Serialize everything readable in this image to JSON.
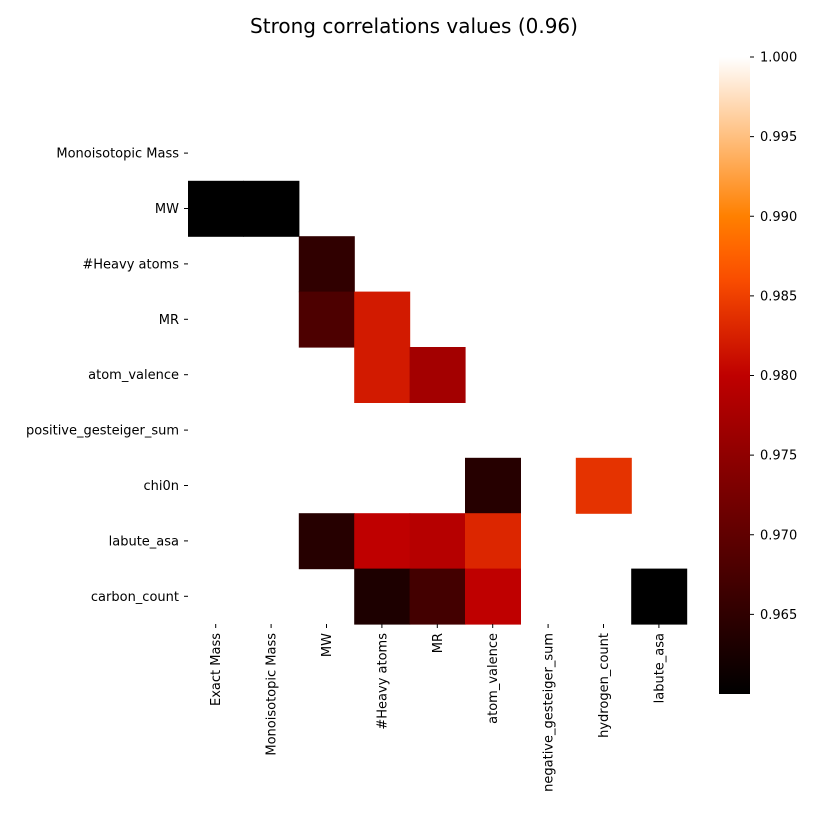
{
  "chart_data": {
    "type": "heatmap",
    "title": "Strong correlations values (0.96)",
    "xlabel": "",
    "ylabel": "",
    "x_categories": [
      "Exact Mass",
      "Monoisotopic Mass",
      "MW",
      "#Heavy atoms",
      "MR",
      "atom_valence",
      "negative_gesteiger_sum",
      "hydrogen_count",
      "labute_asa"
    ],
    "y_categories": [
      "",
      "Monoisotopic Mass",
      "MW",
      "#Heavy atoms",
      "MR",
      "atom_valence",
      "positive_gesteiger_sum",
      "chi0n",
      "labute_asa",
      "carbon_count"
    ],
    "values": [
      [
        null,
        null,
        null,
        null,
        null,
        null,
        null,
        null,
        null
      ],
      [
        null,
        null,
        null,
        null,
        null,
        null,
        null,
        null,
        null
      ],
      [
        0.96,
        0.96,
        null,
        null,
        null,
        null,
        null,
        null,
        null
      ],
      [
        null,
        null,
        0.965,
        null,
        null,
        null,
        null,
        null,
        null
      ],
      [
        null,
        null,
        0.968,
        0.982,
        null,
        null,
        null,
        null,
        null
      ],
      [
        null,
        null,
        null,
        0.982,
        0.977,
        null,
        null,
        null,
        null
      ],
      [
        null,
        null,
        null,
        null,
        null,
        null,
        null,
        null,
        null
      ],
      [
        null,
        null,
        null,
        null,
        null,
        0.964,
        null,
        0.984,
        null
      ],
      [
        null,
        null,
        0.964,
        0.98,
        0.979,
        0.983,
        null,
        null,
        null
      ],
      [
        null,
        null,
        null,
        0.963,
        0.967,
        0.98,
        null,
        null,
        0.96
      ]
    ],
    "colormap": "gist_heat",
    "colorbar": {
      "range": [
        0.96,
        1.0
      ],
      "ticks": [
        "1.000",
        "0.995",
        "0.990",
        "0.985",
        "0.980",
        "0.975",
        "0.970",
        "0.965"
      ]
    }
  }
}
